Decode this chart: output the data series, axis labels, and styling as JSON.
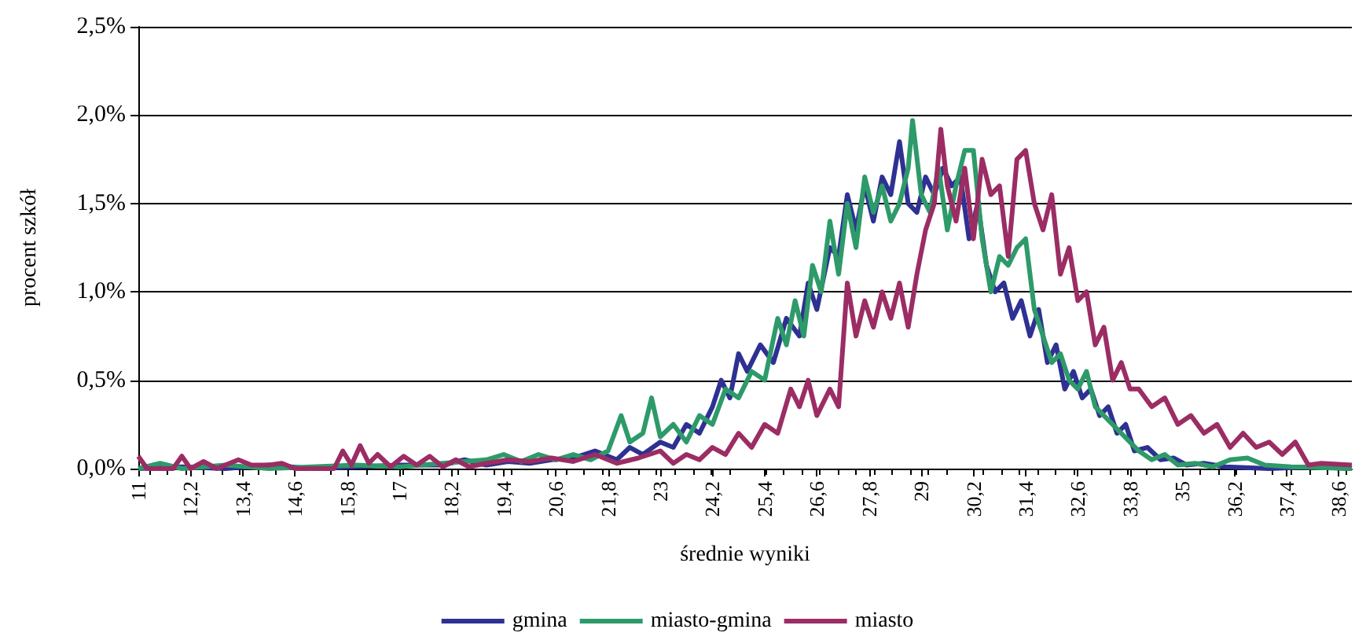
{
  "chart_data": {
    "type": "line",
    "xlabel": "średnie wyniki",
    "ylabel": "procent szkół",
    "xlim": [
      11,
      38.9
    ],
    "xticks": [
      11,
      {
        "value": 12.2,
        "label": "12,2"
      },
      {
        "value": 13.4,
        "label": "13,4"
      },
      {
        "value": 14.6,
        "label": "14,6"
      },
      {
        "value": 15.8,
        "label": "15,8"
      },
      17,
      {
        "value": 18.2,
        "label": "18,2"
      },
      {
        "value": 19.4,
        "label": "19,4"
      },
      {
        "value": 20.6,
        "label": "20,6"
      },
      {
        "value": 21.8,
        "label": "21,8"
      },
      23,
      {
        "value": 24.2,
        "label": "24,2"
      },
      {
        "value": 25.4,
        "label": "25,4"
      },
      {
        "value": 26.6,
        "label": "26,6"
      },
      {
        "value": 27.8,
        "label": "27,8"
      },
      29,
      {
        "value": 30.2,
        "label": "30,2"
      },
      {
        "value": 31.4,
        "label": "31,4"
      },
      {
        "value": 32.6,
        "label": "32,6"
      },
      {
        "value": 33.8,
        "label": "33,8"
      },
      35,
      {
        "value": 36.2,
        "label": "36,2"
      },
      {
        "value": 37.4,
        "label": "37,4"
      },
      {
        "value": 38.6,
        "label": "38,6"
      }
    ],
    "ylim": [
      0,
      2.5
    ],
    "yticks": [
      {
        "value": 0,
        "label": "0,0%"
      },
      {
        "value": 0.5,
        "label": "0,5%"
      },
      {
        "value": 1,
        "label": "1,0%"
      },
      {
        "value": 1.5,
        "label": "1,5%"
      },
      {
        "value": 2,
        "label": "2,0%"
      },
      {
        "value": 2.5,
        "label": "2,5%"
      }
    ],
    "grid": "y",
    "legend": "bottom",
    "marker": "none",
    "line_style": "solid",
    "series": [
      {
        "name": "gmina",
        "color": "#2e3192",
        "x": [
          11,
          12,
          13,
          14,
          15,
          16,
          17,
          18,
          18.5,
          19,
          19.5,
          20,
          20.5,
          21,
          21.5,
          22,
          22.3,
          22.6,
          23,
          23.3,
          23.6,
          23.9,
          24.2,
          24.4,
          24.6,
          24.8,
          25,
          25.3,
          25.6,
          25.9,
          26.2,
          26.4,
          26.6,
          26.9,
          27.1,
          27.3,
          27.5,
          27.7,
          27.9,
          28.1,
          28.3,
          28.5,
          28.7,
          28.9,
          29.1,
          29.3,
          29.5,
          29.7,
          29.9,
          30.1,
          30.3,
          30.5,
          30.7,
          30.9,
          31.1,
          31.3,
          31.5,
          31.7,
          31.9,
          32.1,
          32.3,
          32.5,
          32.7,
          32.9,
          33.1,
          33.3,
          33.5,
          33.7,
          33.9,
          34.2,
          34.5,
          34.8,
          35.1,
          35.5,
          36,
          37,
          38,
          38.9
        ],
        "values": [
          0,
          0.01,
          0,
          0.02,
          0,
          0.01,
          0.02,
          0.02,
          0.05,
          0.02,
          0.04,
          0.03,
          0.05,
          0.06,
          0.1,
          0.05,
          0.12,
          0.08,
          0.15,
          0.12,
          0.25,
          0.2,
          0.35,
          0.5,
          0.4,
          0.65,
          0.55,
          0.7,
          0.6,
          0.85,
          0.75,
          1.05,
          0.9,
          1.25,
          1.2,
          1.55,
          1.35,
          1.6,
          1.4,
          1.65,
          1.55,
          1.85,
          1.5,
          1.45,
          1.65,
          1.55,
          1.7,
          1.6,
          1.65,
          1.3,
          1.5,
          1.15,
          1,
          1.05,
          0.85,
          0.95,
          0.75,
          0.9,
          0.6,
          0.7,
          0.45,
          0.55,
          0.4,
          0.45,
          0.3,
          0.35,
          0.2,
          0.25,
          0.1,
          0.12,
          0.05,
          0.06,
          0.02,
          0.03,
          0.01,
          0,
          0.01,
          0
        ]
      },
      {
        "name": "miasto-gmina",
        "color": "#2e9a6a",
        "x": [
          11,
          11.5,
          12,
          13,
          14,
          15,
          16,
          17,
          18,
          19,
          19.4,
          19.8,
          20.2,
          20.6,
          21,
          21.4,
          21.8,
          22.1,
          22.3,
          22.6,
          22.8,
          23,
          23.3,
          23.6,
          23.9,
          24.2,
          24.5,
          24.8,
          25.1,
          25.4,
          25.7,
          25.9,
          26.1,
          26.3,
          26.5,
          26.7,
          26.9,
          27.1,
          27.3,
          27.5,
          27.7,
          27.9,
          28.1,
          28.3,
          28.5,
          28.7,
          28.8,
          29,
          29.2,
          29.4,
          29.6,
          29.8,
          30,
          30.2,
          30.4,
          30.6,
          30.8,
          31,
          31.2,
          31.4,
          31.6,
          31.8,
          32,
          32.2,
          32.4,
          32.6,
          32.8,
          33,
          33.2,
          33.4,
          33.6,
          33.8,
          34,
          34.3,
          34.6,
          34.9,
          35.3,
          35.7,
          36.1,
          36.5,
          36.9,
          37.5,
          38.9
        ],
        "values": [
          0,
          0.03,
          0,
          0.02,
          0,
          0.01,
          0.02,
          0.01,
          0.03,
          0.05,
          0.08,
          0.04,
          0.08,
          0.05,
          0.08,
          0.05,
          0.1,
          0.3,
          0.15,
          0.2,
          0.4,
          0.18,
          0.25,
          0.15,
          0.3,
          0.25,
          0.45,
          0.4,
          0.55,
          0.5,
          0.85,
          0.7,
          0.95,
          0.75,
          1.15,
          1,
          1.4,
          1.1,
          1.5,
          1.25,
          1.65,
          1.45,
          1.6,
          1.4,
          1.5,
          1.7,
          1.97,
          1.55,
          1.45,
          1.7,
          1.35,
          1.6,
          1.8,
          1.8,
          1.3,
          1,
          1.2,
          1.15,
          1.25,
          1.3,
          0.9,
          0.75,
          0.6,
          0.65,
          0.5,
          0.45,
          0.55,
          0.35,
          0.3,
          0.25,
          0.2,
          0.15,
          0.1,
          0.05,
          0.08,
          0.02,
          0.03,
          0.01,
          0.05,
          0.06,
          0.02,
          0.01,
          0
        ]
      },
      {
        "name": "miasto",
        "color": "#9b2d64",
        "x": [
          11,
          11.2,
          11.8,
          12,
          12.2,
          12.5,
          12.8,
          13.3,
          13.6,
          14,
          14.3,
          14.6,
          15.5,
          15.7,
          15.9,
          16.1,
          16.3,
          16.5,
          16.8,
          17.1,
          17.4,
          17.7,
          18,
          18.3,
          18.6,
          19,
          19.5,
          20,
          20.5,
          21,
          21.5,
          22,
          22.5,
          23,
          23.3,
          23.6,
          23.9,
          24.2,
          24.5,
          24.8,
          25.1,
          25.4,
          25.7,
          26,
          26.2,
          26.4,
          26.6,
          26.9,
          27.1,
          27.3,
          27.5,
          27.7,
          27.9,
          28.1,
          28.3,
          28.5,
          28.7,
          28.9,
          29.1,
          29.3,
          29.45,
          29.6,
          29.8,
          30,
          30.2,
          30.4,
          30.6,
          30.8,
          31,
          31.2,
          31.4,
          31.6,
          31.8,
          32,
          32.2,
          32.4,
          32.6,
          32.8,
          33,
          33.2,
          33.4,
          33.6,
          33.8,
          34,
          34.3,
          34.6,
          34.9,
          35.2,
          35.5,
          35.8,
          36.1,
          36.4,
          36.7,
          37,
          37.3,
          37.6,
          37.9,
          38.2,
          38.9
        ],
        "values": [
          0.07,
          0,
          0,
          0.07,
          0,
          0.04,
          0,
          0.05,
          0.02,
          0.02,
          0.03,
          0,
          0,
          0.1,
          0.02,
          0.13,
          0.03,
          0.08,
          0.01,
          0.07,
          0.02,
          0.07,
          0.01,
          0.05,
          0.01,
          0.03,
          0.05,
          0.04,
          0.06,
          0.04,
          0.08,
          0.03,
          0.06,
          0.1,
          0.03,
          0.08,
          0.05,
          0.12,
          0.08,
          0.2,
          0.12,
          0.25,
          0.2,
          0.45,
          0.35,
          0.5,
          0.3,
          0.45,
          0.35,
          1.05,
          0.75,
          0.95,
          0.8,
          1,
          0.85,
          1.05,
          0.8,
          1.1,
          1.35,
          1.5,
          1.92,
          1.6,
          1.4,
          1.7,
          1.3,
          1.75,
          1.55,
          1.6,
          1.2,
          1.75,
          1.8,
          1.5,
          1.35,
          1.55,
          1.1,
          1.25,
          0.95,
          1,
          0.7,
          0.8,
          0.5,
          0.6,
          0.45,
          0.45,
          0.35,
          0.4,
          0.25,
          0.3,
          0.2,
          0.25,
          0.12,
          0.2,
          0.12,
          0.15,
          0.08,
          0.15,
          0.02,
          0.03,
          0.02
        ]
      }
    ]
  }
}
